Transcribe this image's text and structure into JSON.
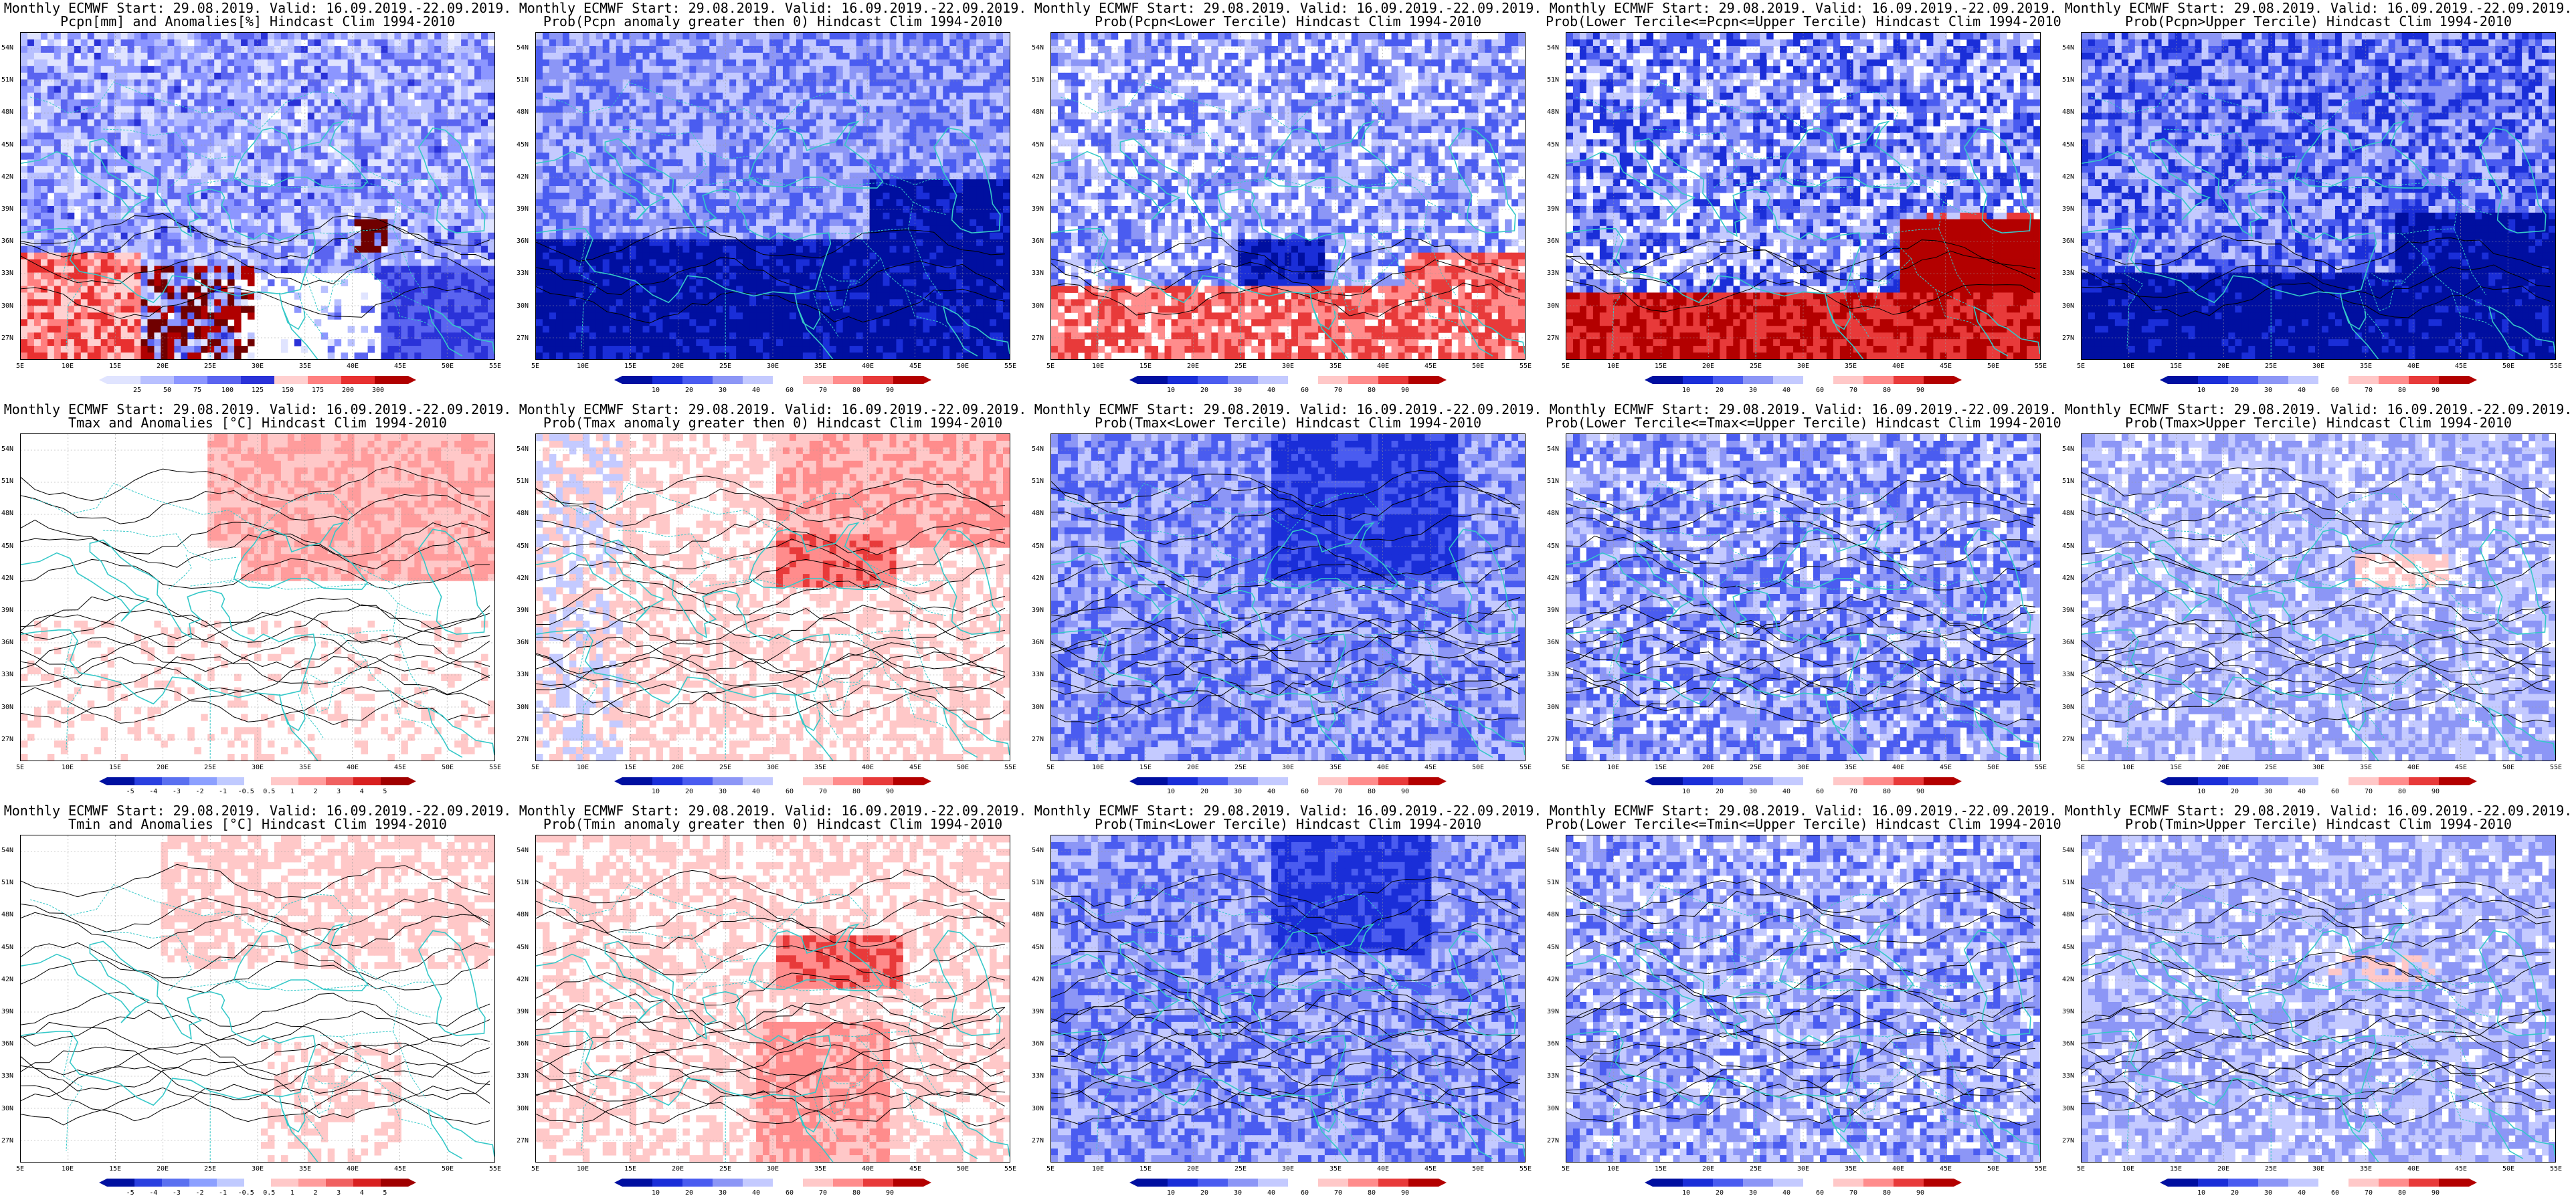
{
  "figure": {
    "lat_labels": [
      "54N",
      "51N",
      "48N",
      "45N",
      "42N",
      "39N",
      "36N",
      "33N",
      "30N",
      "27N"
    ],
    "lon_labels": [
      "5E",
      "10E",
      "15E",
      "20E",
      "25E",
      "30E",
      "35E",
      "40E",
      "45E",
      "50E",
      "55E"
    ],
    "panels": [
      {
        "id": "pcpn-anom",
        "title1": "Monthly ECMWF Start: 29.08.2019. Valid: 16.09.2019.-22.09.2019.",
        "title2": "Pcpn[mm] and Anomalies[%] Hindcast Clim 1994-2010",
        "scheme": "precip",
        "field": "pcpn_anom",
        "ticks": [
          "25",
          "50",
          "75",
          "100",
          "125",
          "150",
          "175",
          "200",
          "300"
        ]
      },
      {
        "id": "pcpn-gt0",
        "title1": "Monthly ECMWF Start: 29.08.2019. Valid: 16.09.2019.-22.09.2019.",
        "title2": "Prob(Pcpn anomaly greater then 0) Hindcast Clim 1994-2010",
        "scheme": "prob",
        "field": "pcpn_gt0",
        "ticks": [
          "10",
          "20",
          "30",
          "40",
          "60",
          "70",
          "80",
          "90"
        ]
      },
      {
        "id": "pcpn-lower",
        "title1": "Monthly ECMWF Start: 29.08.2019. Valid: 16.09.2019.-22.09.2019.",
        "title2": "Prob(Pcpn<Lower Tercile) Hindcast Clim 1994-2010",
        "scheme": "prob",
        "field": "pcpn_lower",
        "ticks": [
          "10",
          "20",
          "30",
          "40",
          "60",
          "70",
          "80",
          "90"
        ]
      },
      {
        "id": "pcpn-middle",
        "title1": "Monthly ECMWF Start: 29.08.2019. Valid: 16.09.2019.-22.09.2019.",
        "title2": "Prob(Lower Tercile<=Pcpn<=Upper Tercile) Hindcast Clim 1994-2010",
        "scheme": "prob",
        "field": "pcpn_middle",
        "ticks": [
          "10",
          "20",
          "30",
          "40",
          "60",
          "70",
          "80",
          "90"
        ]
      },
      {
        "id": "pcpn-upper",
        "title1": "Monthly ECMWF Start: 29.08.2019. Valid: 16.09.2019.-22.09.2019.",
        "title2": "Prob(Pcpn>Upper Tercile) Hindcast Clim 1994-2010",
        "scheme": "prob",
        "field": "pcpn_upper",
        "ticks": [
          "10",
          "20",
          "30",
          "40",
          "60",
          "70",
          "80",
          "90"
        ]
      },
      {
        "id": "tmax-anom",
        "title1": "Monthly ECMWF Start: 29.08.2019. Valid: 16.09.2019.-22.09.2019.",
        "title2": "Tmax and Anomalies [°C] Hindcast Clim 1994-2010",
        "scheme": "anom",
        "field": "tmax_anom",
        "ticks": [
          "-5",
          "-4",
          "-3",
          "-2",
          "-1",
          "-0.5",
          "0.5",
          "1",
          "2",
          "3",
          "4",
          "5"
        ]
      },
      {
        "id": "tmax-gt0",
        "title1": "Monthly ECMWF Start: 29.08.2019. Valid: 16.09.2019.-22.09.2019.",
        "title2": "Prob(Tmax anomaly greater then 0) Hindcast Clim 1994-2010",
        "scheme": "prob",
        "field": "tmax_gt0",
        "ticks": [
          "10",
          "20",
          "30",
          "40",
          "60",
          "70",
          "80",
          "90"
        ]
      },
      {
        "id": "tmax-lower",
        "title1": "Monthly ECMWF Start: 29.08.2019. Valid: 16.09.2019.-22.09.2019.",
        "title2": "Prob(Tmax<Lower Tercile) Hindcast Clim 1994-2010",
        "scheme": "prob",
        "field": "tmax_lower",
        "ticks": [
          "10",
          "20",
          "30",
          "40",
          "60",
          "70",
          "80",
          "90"
        ]
      },
      {
        "id": "tmax-middle",
        "title1": "Monthly ECMWF Start: 29.08.2019. Valid: 16.09.2019.-22.09.2019.",
        "title2": "Prob(Lower Tercile<=Tmax<=Upper Tercile) Hindcast Clim 1994-2010",
        "scheme": "prob",
        "field": "tmax_middle",
        "ticks": [
          "10",
          "20",
          "30",
          "40",
          "60",
          "70",
          "80",
          "90"
        ]
      },
      {
        "id": "tmax-upper",
        "title1": "Monthly ECMWF Start: 29.08.2019. Valid: 16.09.2019.-22.09.2019.",
        "title2": "Prob(Tmax>Upper Tercile) Hindcast Clim 1994-2010",
        "scheme": "prob",
        "field": "tmax_upper",
        "ticks": [
          "10",
          "20",
          "30",
          "40",
          "60",
          "70",
          "80",
          "90"
        ]
      },
      {
        "id": "tmin-anom",
        "title1": "Monthly ECMWF Start: 29.08.2019. Valid: 16.09.2019.-22.09.2019.",
        "title2": "Tmin and Anomalies [°C] Hindcast Clim 1994-2010",
        "scheme": "anom",
        "field": "tmin_anom",
        "ticks": [
          "-5",
          "-4",
          "-3",
          "-2",
          "-1",
          "-0.5",
          "0.5",
          "1",
          "2",
          "3",
          "4",
          "5"
        ]
      },
      {
        "id": "tmin-gt0",
        "title1": "Monthly ECMWF Start: 29.08.2019. Valid: 16.09.2019.-22.09.2019.",
        "title2": "Prob(Tmin anomaly greater then 0) Hindcast Clim 1994-2010",
        "scheme": "prob",
        "field": "tmin_gt0",
        "ticks": [
          "10",
          "20",
          "30",
          "40",
          "60",
          "70",
          "80",
          "90"
        ]
      },
      {
        "id": "tmin-lower",
        "title1": "Monthly ECMWF Start: 29.08.2019. Valid: 16.09.2019.-22.09.2019.",
        "title2": "Prob(Tmin<Lower Tercile) Hindcast Clim 1994-2010",
        "scheme": "prob",
        "field": "tmin_lower",
        "ticks": [
          "10",
          "20",
          "30",
          "40",
          "60",
          "70",
          "80",
          "90"
        ]
      },
      {
        "id": "tmin-middle",
        "title1": "Monthly ECMWF Start: 29.08.2019. Valid: 16.09.2019.-22.09.2019.",
        "title2": "Prob(Lower Tercile<=Tmin<=Upper Tercile) Hindcast Clim 1994-2010",
        "scheme": "prob",
        "field": "tmin_middle",
        "ticks": [
          "10",
          "20",
          "30",
          "40",
          "60",
          "70",
          "80",
          "90"
        ]
      },
      {
        "id": "tmin-upper",
        "title1": "Monthly ECMWF Start: 29.08.2019. Valid: 16.09.2019.-22.09.2019.",
        "title2": "Prob(Tmin>Upper Tercile) Hindcast Clim 1994-2010",
        "scheme": "prob",
        "field": "tmin_upper",
        "ticks": [
          "10",
          "20",
          "30",
          "40",
          "60",
          "70",
          "80",
          "90"
        ]
      }
    ],
    "palettes": {
      "precip": [
        "#ffffff",
        "#e0e4ff",
        "#b8c0ff",
        "#8c96ff",
        "#5a64f0",
        "#2a32d8",
        "#ffd0d0",
        "#ff8080",
        "#e83030",
        "#b00000",
        "#700000"
      ],
      "prob": [
        "#000fa0",
        "#1a2ed8",
        "#4a5cf0",
        "#8c96f6",
        "#c4caff",
        "#ffffff",
        "#ffc8c8",
        "#ff8c8c",
        "#e83a3a",
        "#b30000"
      ],
      "anom": [
        "#0010a0",
        "#2a40e0",
        "#5a70f0",
        "#8ca0ff",
        "#c0caff",
        "#ffffff",
        "#ffc8c8",
        "#ff9c9c",
        "#f06060",
        "#d82020",
        "#a00000"
      ]
    },
    "colors": {
      "coast": "#35c8c8",
      "contour": "#000000",
      "border": "#000000"
    }
  }
}
